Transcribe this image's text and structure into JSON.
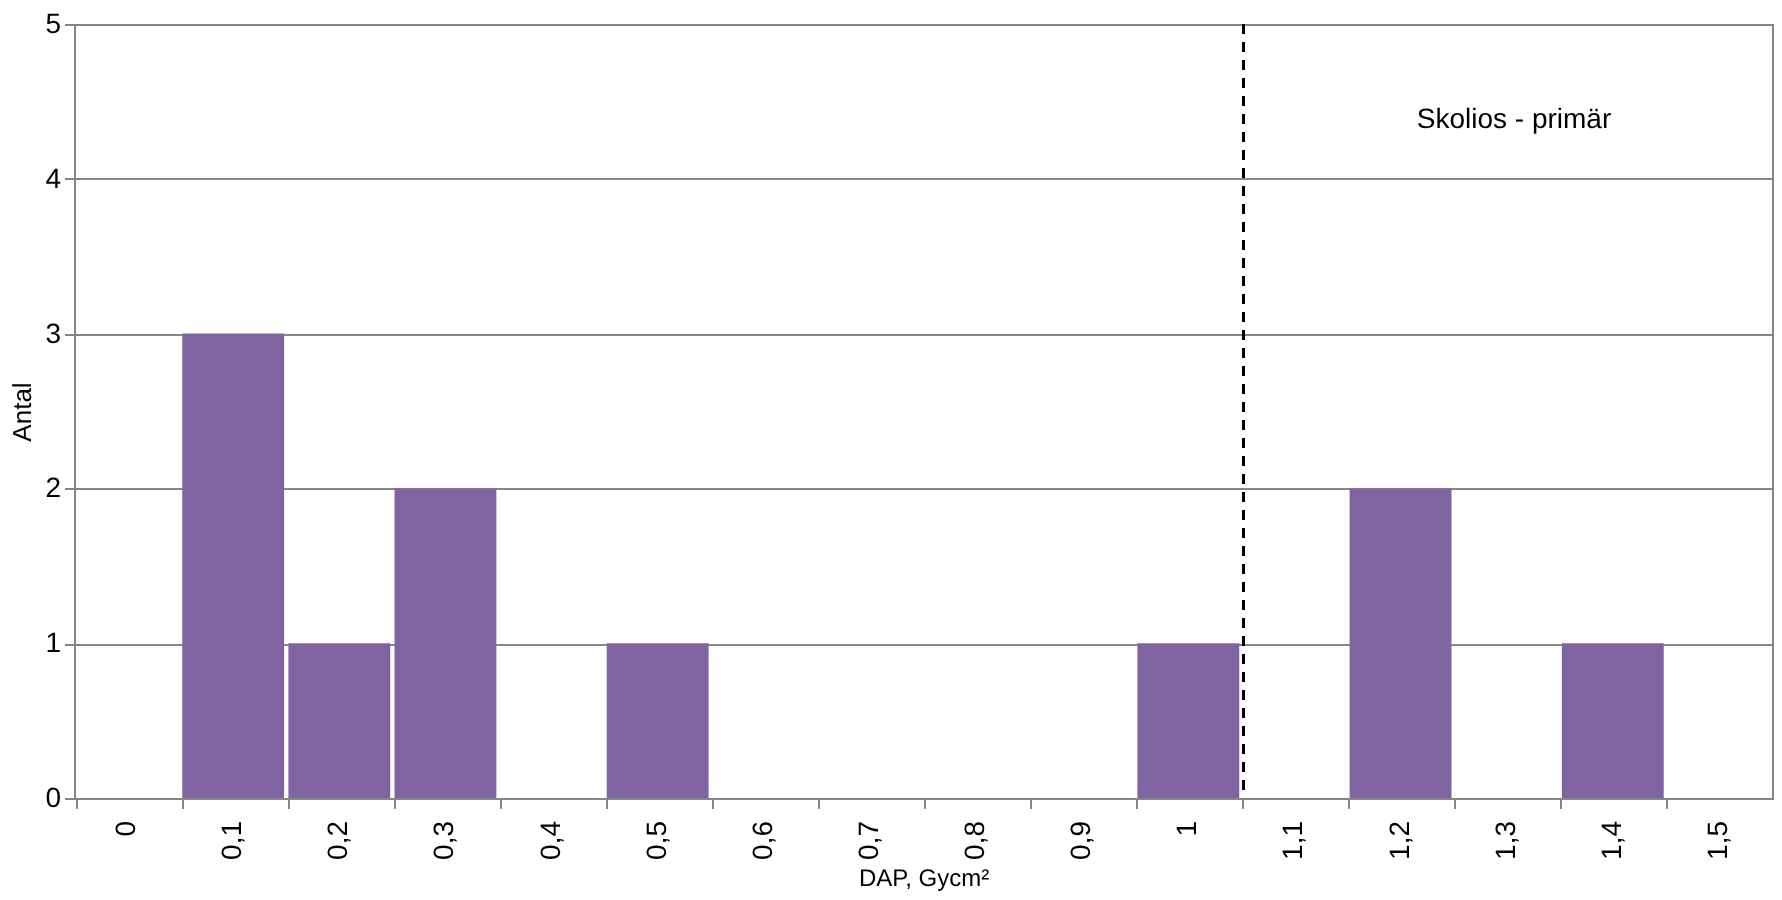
{
  "chart_data": {
    "type": "bar",
    "categories": [
      "0",
      "0,1",
      "0,2",
      "0,3",
      "0,4",
      "0,5",
      "0,6",
      "0,7",
      "0,8",
      "0,9",
      "1",
      "1,1",
      "1,2",
      "1,3",
      "1,4",
      "1,5"
    ],
    "values": [
      0,
      3,
      1,
      2,
      0,
      1,
      0,
      0,
      0,
      0,
      1,
      0,
      2,
      0,
      1,
      0
    ],
    "color": "#8064a2",
    "xlabel": "DAP, Gycm²",
    "ylabel": "Antal",
    "ylim": [
      0,
      5
    ],
    "yticks": [
      0,
      1,
      2,
      3,
      4,
      5
    ],
    "grid": "y",
    "ref_lines": [
      {
        "axis": "x",
        "value": "1,1",
        "line_style": "dashed",
        "color": "#000000"
      }
    ],
    "annotations": [
      "Skolios - primär"
    ]
  }
}
